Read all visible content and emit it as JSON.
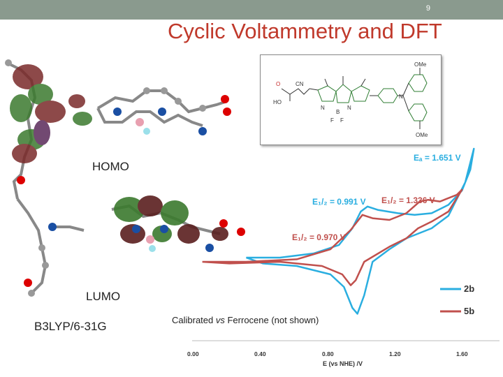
{
  "slide": {
    "number": "9",
    "title": "Cyclic Voltammetry and DFT"
  },
  "labels": {
    "homo": "HOMO",
    "lumo": "LUMO",
    "basis_set": "B3LYP/6-31G",
    "calibration": {
      "prefix": "Calibrated ",
      "vs": "vs",
      "suffix": " Ferrocene (not shown)"
    }
  },
  "structure": {
    "ome_top": "OMe",
    "ome_bottom": "OMe",
    "o": "O",
    "cn": "CN",
    "ho": "HO",
    "n_left": "N",
    "b": "B",
    "n_right": "N",
    "f1": "F",
    "f2": "F",
    "n_amine": "N"
  },
  "annotations": {
    "ea": "Eₐ = 1.651 V",
    "e12_blue": "E₁/₂ = 0.991 V",
    "e12_red_high": "E₁/₂ = 1.336 V",
    "e12_red_low": "E₁/₂ = 0.970 V"
  },
  "colors": {
    "series_2b": "#2aaee0",
    "series_5b": "#c0504d",
    "title": "#c0392b",
    "header_bar": "#8a9a8e"
  },
  "chart_data": {
    "type": "line",
    "xlabel": "E (vs NHE) /V",
    "xlim": [
      0.0,
      1.7
    ],
    "x_ticks": [
      "0.00",
      "0.40",
      "0.80",
      "1.20",
      "1.60"
    ],
    "legend": [
      "2b",
      "5b"
    ],
    "legend_position": "right",
    "series": [
      {
        "name": "2b",
        "color": "#2aaee0",
        "forward": [
          [
            0.3,
            0.05
          ],
          [
            0.5,
            0.05
          ],
          [
            0.7,
            0.1
          ],
          [
            0.85,
            0.2
          ],
          [
            0.93,
            0.4
          ],
          [
            0.98,
            0.6
          ],
          [
            1.02,
            0.66
          ],
          [
            1.08,
            0.62
          ],
          [
            1.2,
            0.58
          ],
          [
            1.3,
            0.56
          ],
          [
            1.4,
            0.58
          ],
          [
            1.5,
            0.68
          ],
          [
            1.58,
            0.85
          ],
          [
            1.63,
            1.1
          ],
          [
            1.651,
            1.35
          ]
        ],
        "reverse": [
          [
            1.651,
            1.35
          ],
          [
            1.6,
            0.95
          ],
          [
            1.5,
            0.55
          ],
          [
            1.4,
            0.4
          ],
          [
            1.25,
            0.28
          ],
          [
            1.15,
            0.15
          ],
          [
            1.05,
            0.0
          ],
          [
            1.0,
            -0.4
          ],
          [
            0.96,
            -0.62
          ],
          [
            0.93,
            -0.55
          ],
          [
            0.88,
            -0.3
          ],
          [
            0.8,
            -0.15
          ],
          [
            0.6,
            -0.05
          ],
          [
            0.4,
            -0.02
          ],
          [
            0.3,
            0.05
          ]
        ]
      },
      {
        "name": "5b",
        "color": "#c0504d",
        "forward": [
          [
            0.04,
            0.0
          ],
          [
            0.3,
            0.0
          ],
          [
            0.6,
            0.03
          ],
          [
            0.8,
            0.15
          ],
          [
            0.92,
            0.38
          ],
          [
            0.99,
            0.56
          ],
          [
            1.05,
            0.52
          ],
          [
            1.15,
            0.5
          ],
          [
            1.25,
            0.58
          ],
          [
            1.33,
            0.72
          ],
          [
            1.38,
            0.74
          ],
          [
            1.45,
            0.72
          ],
          [
            1.55,
            0.8
          ],
          [
            1.58,
            0.86
          ]
        ],
        "reverse": [
          [
            1.58,
            0.86
          ],
          [
            1.5,
            0.6
          ],
          [
            1.4,
            0.48
          ],
          [
            1.32,
            0.4
          ],
          [
            1.25,
            0.28
          ],
          [
            1.15,
            0.18
          ],
          [
            1.0,
            0.0
          ],
          [
            0.95,
            -0.22
          ],
          [
            0.92,
            -0.28
          ],
          [
            0.87,
            -0.15
          ],
          [
            0.75,
            -0.05
          ],
          [
            0.5,
            0.0
          ],
          [
            0.2,
            -0.02
          ],
          [
            0.04,
            0.0
          ]
        ]
      }
    ]
  }
}
